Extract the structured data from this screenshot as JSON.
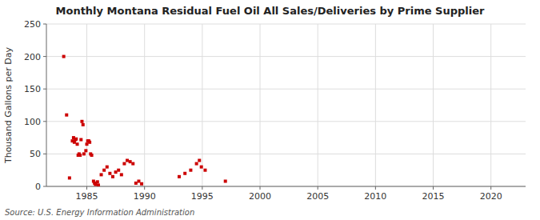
{
  "chart_data": {
    "type": "scatter",
    "title": "Monthly Montana Residual Fuel Oil All Sales/Deliveries by Prime Supplier",
    "y_label": "Thousand Gallons per Day",
    "source": "Source: U.S. Energy Information Administration",
    "color": "#cc0000",
    "marker": "square",
    "grid": true,
    "xlim": [
      1981.5,
      2023
    ],
    "ylim": [
      0,
      250
    ],
    "xticks": [
      1985,
      1990,
      1995,
      2000,
      2005,
      2010,
      2015,
      2020
    ],
    "yticks": [
      0,
      50,
      100,
      150,
      200,
      250
    ],
    "x": [
      1983.0,
      1983.25,
      1983.5,
      1983.75,
      1983.85,
      1983.92,
      1984.0,
      1984.08,
      1984.17,
      1984.25,
      1984.33,
      1984.42,
      1984.5,
      1984.58,
      1984.67,
      1984.75,
      1984.92,
      1985.0,
      1985.08,
      1985.17,
      1985.25,
      1985.33,
      1985.42,
      1985.58,
      1985.67,
      1985.75,
      1985.92,
      1986.0,
      1986.25,
      1986.5,
      1986.75,
      1987.0,
      1987.25,
      1987.5,
      1987.75,
      1988.0,
      1988.25,
      1988.5,
      1988.75,
      1989.0,
      1989.25,
      1989.5,
      1989.75,
      1993.0,
      1993.5,
      1994.0,
      1994.5,
      1994.75,
      1994.92,
      1995.25,
      1997.0
    ],
    "values": [
      200,
      110,
      13,
      70,
      75,
      68,
      72,
      73,
      65,
      48,
      50,
      48,
      72,
      100,
      95,
      50,
      55,
      65,
      70,
      70,
      68,
      50,
      48,
      8,
      5,
      3,
      7,
      2,
      18,
      25,
      30,
      20,
      15,
      22,
      25,
      18,
      35,
      40,
      38,
      35,
      5,
      8,
      4,
      15,
      20,
      25,
      35,
      40,
      30,
      25,
      8
    ]
  }
}
